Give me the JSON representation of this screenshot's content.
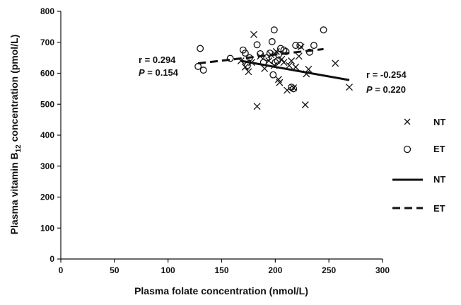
{
  "chart_data": {
    "type": "scatter",
    "xlabel": "Plasma folate concentration (nmol/L)",
    "ylabel_prefix": "Plasma vitamin B",
    "ylabel_sub": "12",
    "ylabel_suffix": " concentration (pmol/L)",
    "xlim": [
      0,
      300
    ],
    "ylim": [
      0,
      800
    ],
    "x_ticks": [
      0,
      50,
      100,
      150,
      200,
      250,
      300
    ],
    "y_ticks": [
      0,
      100,
      200,
      300,
      400,
      500,
      600,
      700,
      800
    ],
    "grid": false,
    "series": [
      {
        "name": "NT",
        "marker": "x",
        "points": [
          [
            168,
            640
          ],
          [
            172,
            620
          ],
          [
            175,
            605
          ],
          [
            178,
            635
          ],
          [
            180,
            725
          ],
          [
            183,
            493
          ],
          [
            186,
            655
          ],
          [
            190,
            615
          ],
          [
            194,
            640
          ],
          [
            196,
            660
          ],
          [
            199,
            625
          ],
          [
            201,
            670
          ],
          [
            203,
            580
          ],
          [
            204,
            570
          ],
          [
            206,
            645
          ],
          [
            208,
            635
          ],
          [
            211,
            545
          ],
          [
            213,
            625
          ],
          [
            215,
            640
          ],
          [
            217,
            553
          ],
          [
            219,
            620
          ],
          [
            222,
            655
          ],
          [
            224,
            685
          ],
          [
            228,
            498
          ],
          [
            229,
            598
          ],
          [
            231,
            613
          ],
          [
            256,
            632
          ],
          [
            269,
            555
          ]
        ]
      },
      {
        "name": "ET",
        "marker": "o",
        "points": [
          [
            128,
            622
          ],
          [
            130,
            680
          ],
          [
            133,
            610
          ],
          [
            158,
            648
          ],
          [
            170,
            675
          ],
          [
            172,
            665
          ],
          [
            174,
            625
          ],
          [
            176,
            650
          ],
          [
            183,
            692
          ],
          [
            186,
            663
          ],
          [
            189,
            635
          ],
          [
            192,
            650
          ],
          [
            195,
            665
          ],
          [
            197,
            702
          ],
          [
            198,
            595
          ],
          [
            199,
            740
          ],
          [
            200,
            635
          ],
          [
            202,
            640
          ],
          [
            203,
            660
          ],
          [
            205,
            680
          ],
          [
            208,
            675
          ],
          [
            210,
            670
          ],
          [
            215,
            555
          ],
          [
            217,
            550
          ],
          [
            219,
            690
          ],
          [
            223,
            690
          ],
          [
            232,
            668
          ],
          [
            236,
            690
          ],
          [
            245,
            740
          ]
        ]
      }
    ],
    "trendlines": [
      {
        "name": "NT",
        "style": "solid",
        "x": [
          168,
          269
        ],
        "y": [
          640,
          578
        ]
      },
      {
        "name": "ET",
        "style": "dashed",
        "x": [
          128,
          245
        ],
        "y": [
          632,
          678
        ]
      }
    ],
    "annotations": {
      "et": {
        "r": "r = 0.294",
        "p_italic": "P",
        "p_rest": " = 0.154"
      },
      "nt": {
        "r": "r = -0.254",
        "p_italic": "P",
        "p_rest": " = 0.220"
      }
    },
    "legend": {
      "placement": "right",
      "entries": [
        {
          "label": "NT",
          "symbol": "x-marker"
        },
        {
          "label": "ET",
          "symbol": "o-marker"
        },
        {
          "label": "NT",
          "symbol": "solid-line"
        },
        {
          "label": "ET",
          "symbol": "dashed-line"
        }
      ]
    }
  }
}
